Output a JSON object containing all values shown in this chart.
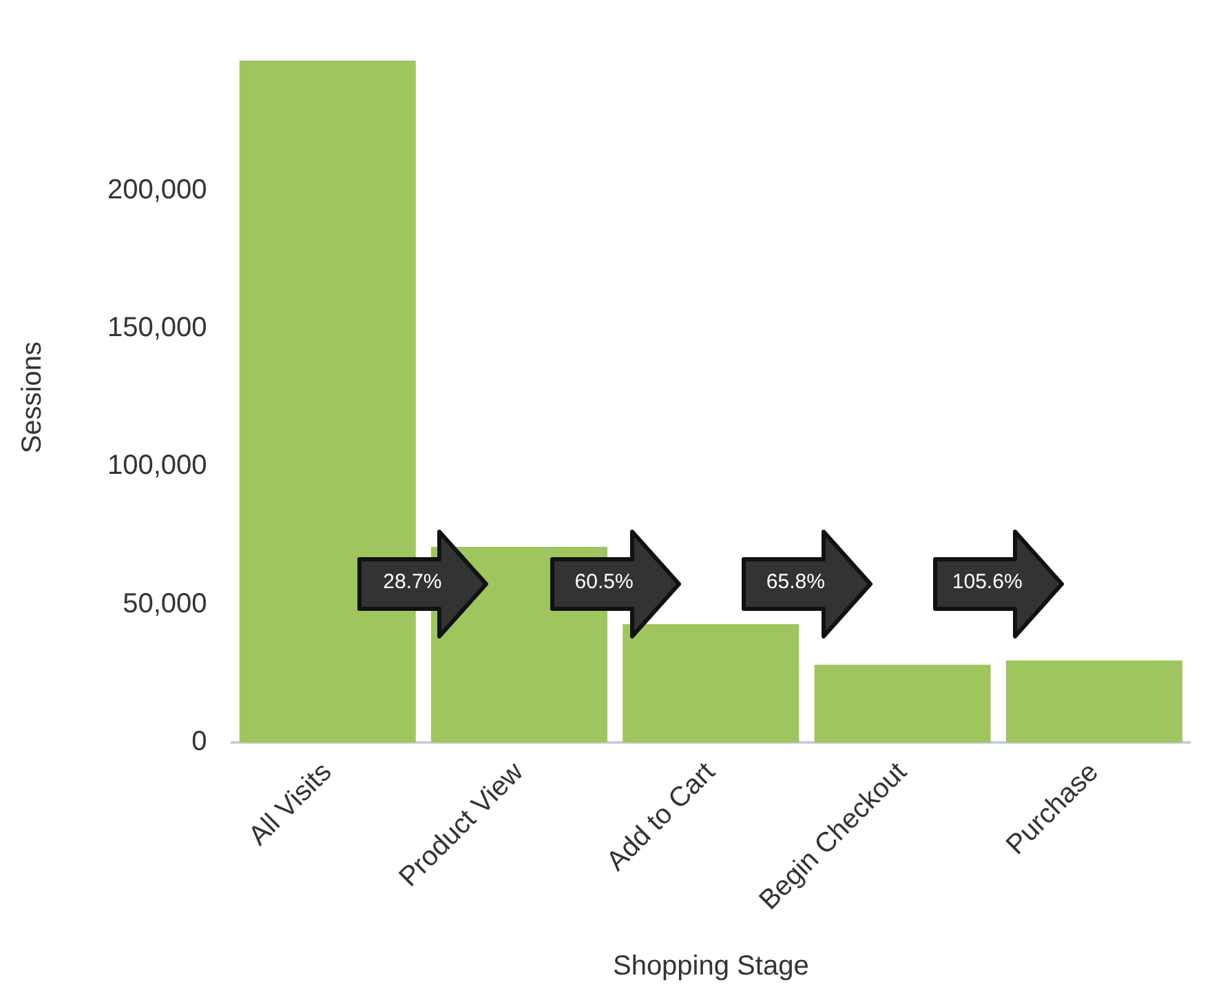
{
  "chart_data": {
    "type": "bar",
    "xlabel": "Shopping Stage",
    "ylabel": "Sessions",
    "categories": [
      "All Visits",
      "Product View",
      "Add to Cart",
      "Begin Checkout",
      "Purchase"
    ],
    "values": [
      247000,
      70900,
      42900,
      28200,
      29800
    ],
    "color": "#9fc55f",
    "ylim": [
      0,
      250000
    ],
    "yticks": [
      {
        "value": 0,
        "label": "0"
      },
      {
        "value": 50000,
        "label": "50,000"
      },
      {
        "value": 100000,
        "label": "100,000"
      },
      {
        "value": 150000,
        "label": "150,000"
      },
      {
        "value": 200000,
        "label": "200,000"
      }
    ],
    "grid": false,
    "legend": false,
    "annotations": [
      "28.7%",
      "60.5%",
      "65.8%",
      "105.6%"
    ]
  }
}
